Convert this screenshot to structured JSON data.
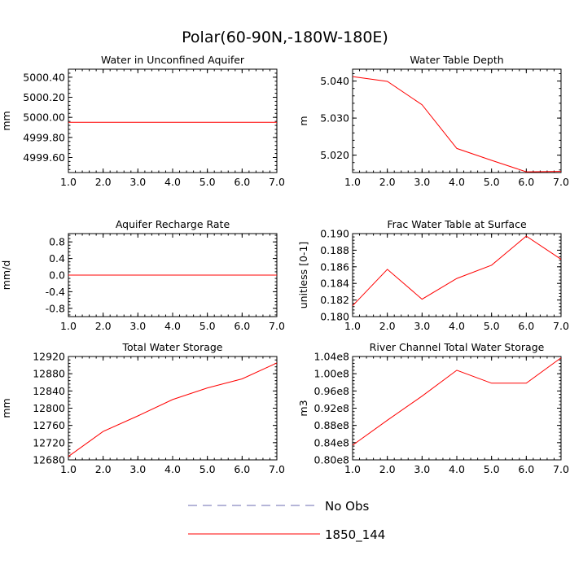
{
  "page_title": "Polar(60-90N,-180W-180E)",
  "legend": {
    "items": [
      {
        "label": "No Obs",
        "color": "#6b6bb0",
        "dashed": true
      },
      {
        "label": "1850_144",
        "color": "#ff0000",
        "dashed": false
      }
    ]
  },
  "chart_data": [
    {
      "type": "line",
      "title": "Water in Unconfined Aquifer",
      "ylabel": "mm",
      "xlim": [
        1.0,
        7.0
      ],
      "xticks": [
        1.0,
        2.0,
        3.0,
        4.0,
        5.0,
        6.0,
        7.0
      ],
      "xtick_labels": [
        "1.0",
        "2.0",
        "3.0",
        "4.0",
        "5.0",
        "6.0",
        "7.0"
      ],
      "ylim": [
        4999.45,
        5000.48
      ],
      "yticks": [
        4999.6,
        4999.8,
        5000.0,
        5000.2,
        5000.4
      ],
      "ytick_labels": [
        "4999.60",
        "4999.80",
        "5000.00",
        "5000.20",
        "5000.40"
      ],
      "series": [
        {
          "name": "1850_144",
          "color": "#ff0000",
          "x": [
            1,
            7
          ],
          "y": [
            4999.95,
            4999.95
          ]
        }
      ]
    },
    {
      "type": "line",
      "title": "Water Table Depth",
      "ylabel": "m",
      "xlim": [
        1.0,
        7.0
      ],
      "xticks": [
        1.0,
        2.0,
        3.0,
        4.0,
        5.0,
        6.0,
        7.0
      ],
      "xtick_labels": [
        "1.0",
        "2.0",
        "3.0",
        "4.0",
        "5.0",
        "6.0",
        "7.0"
      ],
      "ylim": [
        5.0153,
        5.0432
      ],
      "yticks": [
        5.02,
        5.03,
        5.04
      ],
      "ytick_labels": [
        "5.020",
        "5.030",
        "5.040"
      ],
      "series": [
        {
          "name": "1850_144",
          "color": "#ff0000",
          "x": [
            1,
            2,
            3,
            4,
            5,
            6,
            7
          ],
          "y": [
            5.0412,
            5.0399,
            5.0336,
            5.0218,
            5.0186,
            5.0155,
            5.0156
          ]
        }
      ]
    },
    {
      "type": "line",
      "title": "Aquifer Recharge Rate",
      "ylabel": "mm/d",
      "xlim": [
        1.0,
        7.0
      ],
      "xticks": [
        1.0,
        2.0,
        3.0,
        4.0,
        5.0,
        6.0,
        7.0
      ],
      "xtick_labels": [
        "1.0",
        "2.0",
        "3.0",
        "4.0",
        "5.0",
        "6.0",
        "7.0"
      ],
      "ylim": [
        -1.0,
        1.0
      ],
      "yticks": [
        -0.8,
        -0.4,
        0.0,
        0.4,
        0.8
      ],
      "ytick_labels": [
        "-0.8",
        "-0.4",
        "0.0",
        "0.4",
        "0.8"
      ],
      "series": [
        {
          "name": "1850_144",
          "color": "#ff0000",
          "x": [
            1,
            7
          ],
          "y": [
            0.0,
            0.0
          ]
        }
      ]
    },
    {
      "type": "line",
      "title": "Frac Water Table at Surface",
      "ylabel": "unitless [0-1]",
      "xlim": [
        1.0,
        7.0
      ],
      "xticks": [
        1.0,
        2.0,
        3.0,
        4.0,
        5.0,
        6.0,
        7.0
      ],
      "xtick_labels": [
        "1.0",
        "2.0",
        "3.0",
        "4.0",
        "5.0",
        "6.0",
        "7.0"
      ],
      "ylim": [
        0.18,
        0.19
      ],
      "yticks": [
        0.18,
        0.182,
        0.184,
        0.186,
        0.188,
        0.19
      ],
      "ytick_labels": [
        "0.180",
        "0.182",
        "0.184",
        "0.186",
        "0.188",
        "0.190"
      ],
      "series": [
        {
          "name": "1850_144",
          "color": "#ff0000",
          "x": [
            1,
            2,
            3,
            4,
            5,
            6,
            7
          ],
          "y": [
            0.1813,
            0.1857,
            0.1821,
            0.1846,
            0.1862,
            0.1897,
            0.1869
          ]
        }
      ]
    },
    {
      "type": "line",
      "title": "Total Water Storage",
      "ylabel": "mm",
      "xlim": [
        1.0,
        7.0
      ],
      "xticks": [
        1.0,
        2.0,
        3.0,
        4.0,
        5.0,
        6.0,
        7.0
      ],
      "xtick_labels": [
        "1.0",
        "2.0",
        "3.0",
        "4.0",
        "5.0",
        "6.0",
        "7.0"
      ],
      "ylim": [
        12680,
        12920
      ],
      "yticks": [
        12680,
        12720,
        12760,
        12800,
        12840,
        12880,
        12920
      ],
      "ytick_labels": [
        "12680",
        "12720",
        "12760",
        "12800",
        "12840",
        "12880",
        "12920"
      ],
      "series": [
        {
          "name": "1850_144",
          "color": "#ff0000",
          "x": [
            1,
            2,
            3,
            4,
            5,
            6,
            7
          ],
          "y": [
            12688,
            12746,
            12782,
            12820,
            12847,
            12868,
            12905
          ]
        }
      ]
    },
    {
      "type": "line",
      "title": "River Channel Total Water Storage",
      "ylabel": "m3",
      "xlim": [
        1.0,
        7.0
      ],
      "xticks": [
        1.0,
        2.0,
        3.0,
        4.0,
        5.0,
        6.0,
        7.0
      ],
      "xtick_labels": [
        "1.0",
        "2.0",
        "3.0",
        "4.0",
        "5.0",
        "6.0",
        "7.0"
      ],
      "ylim": [
        0.8,
        1.04
      ],
      "yticks": [
        0.8,
        0.84,
        0.88,
        0.92,
        0.96,
        1.0,
        1.04
      ],
      "ytick_labels": [
        "0.80e8",
        "0.84e8",
        "0.88e8",
        "0.92e8",
        "0.96e8",
        "1.00e8",
        "1.04e8"
      ],
      "series": [
        {
          "name": "1850_144",
          "color": "#ff0000",
          "x": [
            1,
            2,
            3,
            4,
            5,
            6,
            7
          ],
          "y": [
            0.834,
            0.892,
            0.948,
            1.008,
            0.978,
            0.978,
            1.037
          ]
        }
      ]
    }
  ]
}
